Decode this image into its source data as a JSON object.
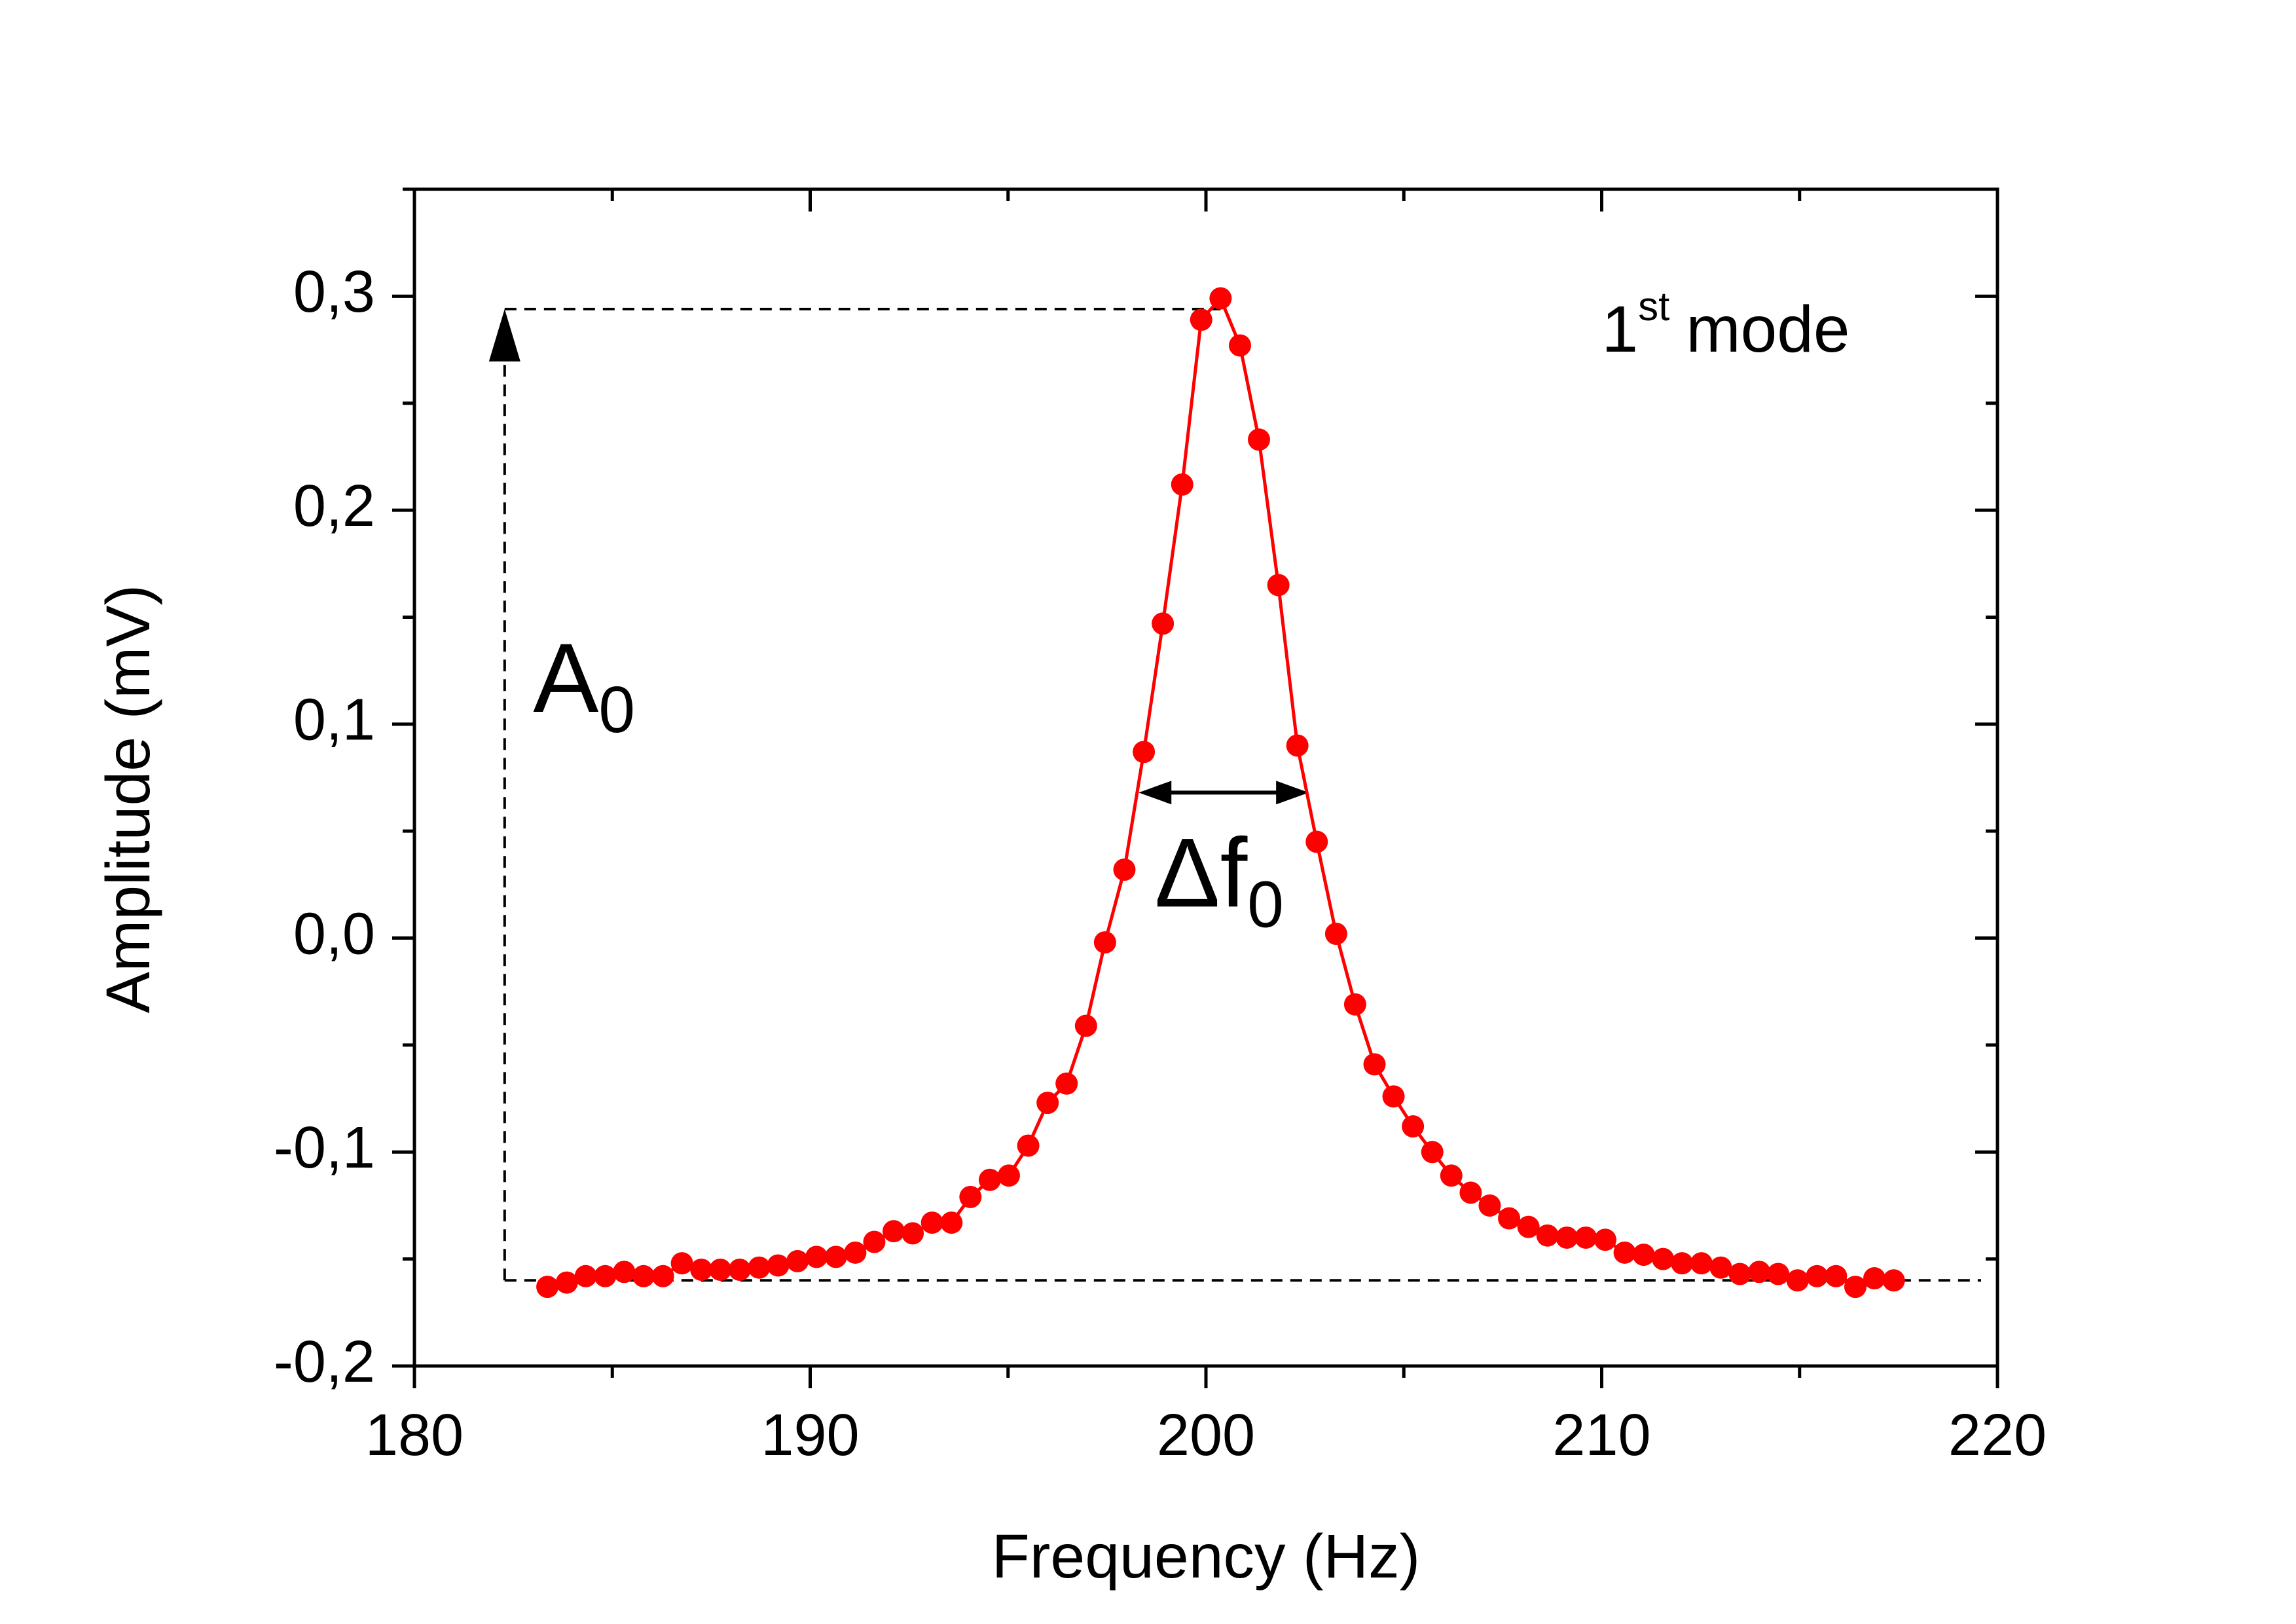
{
  "chart_data": {
    "type": "line",
    "x_label": "Frequency (Hz)",
    "y_label": "Amplitude (mV)",
    "xlim": [
      180,
      220
    ],
    "xticks": [
      180,
      190,
      200,
      210,
      220
    ],
    "ylim": [
      -0.2,
      0.35
    ],
    "yticks": [
      {
        "value": -0.2,
        "label": "-0,2"
      },
      {
        "value": -0.1,
        "label": "-0,1"
      },
      {
        "value": 0.0,
        "label": "0,0"
      },
      {
        "value": 0.1,
        "label": "0,1"
      },
      {
        "value": 0.2,
        "label": "0,2"
      },
      {
        "value": 0.3,
        "label": "0,3"
      }
    ],
    "color": "#ff0000",
    "x": [
      183.36,
      183.85,
      184.33,
      184.82,
      185.3,
      185.79,
      186.28,
      186.76,
      187.25,
      187.73,
      188.22,
      188.71,
      189.19,
      189.68,
      190.16,
      190.65,
      191.14,
      191.62,
      192.11,
      192.59,
      193.08,
      193.57,
      194.05,
      194.54,
      195.02,
      195.51,
      196.0,
      196.48,
      196.97,
      197.45,
      197.94,
      198.43,
      198.91,
      199.4,
      199.88,
      200.37,
      200.86,
      201.34,
      201.83,
      202.31,
      202.8,
      203.29,
      203.77,
      204.26,
      204.74,
      205.23,
      205.72,
      206.2,
      206.69,
      207.17,
      207.66,
      208.15,
      208.63,
      209.12,
      209.6,
      210.09,
      210.58,
      211.06,
      211.55,
      212.03,
      212.52,
      213.01,
      213.49,
      213.98,
      214.46,
      214.95,
      215.44,
      215.92,
      216.41,
      216.89,
      217.38
    ],
    "values": [
      -0.163,
      -0.161,
      -0.158,
      -0.158,
      -0.156,
      -0.158,
      -0.158,
      -0.152,
      -0.155,
      -0.155,
      -0.155,
      -0.154,
      -0.153,
      -0.151,
      -0.149,
      -0.149,
      -0.147,
      -0.142,
      -0.137,
      -0.138,
      -0.133,
      -0.133,
      -0.121,
      -0.113,
      -0.111,
      -0.097,
      -0.077,
      -0.068,
      -0.041,
      -0.002,
      0.032,
      0.087,
      0.147,
      0.212,
      0.289,
      0.299,
      0.277,
      0.233,
      0.165,
      0.09,
      0.045,
      0.002,
      -0.031,
      -0.059,
      -0.074,
      -0.088,
      -0.1,
      -0.111,
      -0.119,
      -0.125,
      -0.131,
      -0.135,
      -0.139,
      -0.14,
      -0.14,
      -0.141,
      -0.147,
      -0.148,
      -0.15,
      -0.152,
      -0.152,
      -0.154,
      -0.157,
      -0.156,
      -0.157,
      -0.16,
      -0.158,
      -0.158,
      -0.163,
      -0.159,
      -0.16
    ],
    "reference_lines": {
      "peak": 0.294,
      "baseline": -0.16,
      "x": 182.28
    },
    "width_arrow": {
      "y": 0.068,
      "from": 198.3,
      "to": 202.6
    },
    "annotations": [
      {
        "text": "A",
        "subscript": "0",
        "x": 183.0,
        "y": 0.118
      },
      {
        "text": "Δf",
        "subscript": "0",
        "x": 198.7,
        "y": 0.027
      },
      {
        "text": "1",
        "superscript": "st",
        "after": "mode",
        "x": 210.0,
        "y": 0.282
      }
    ]
  }
}
